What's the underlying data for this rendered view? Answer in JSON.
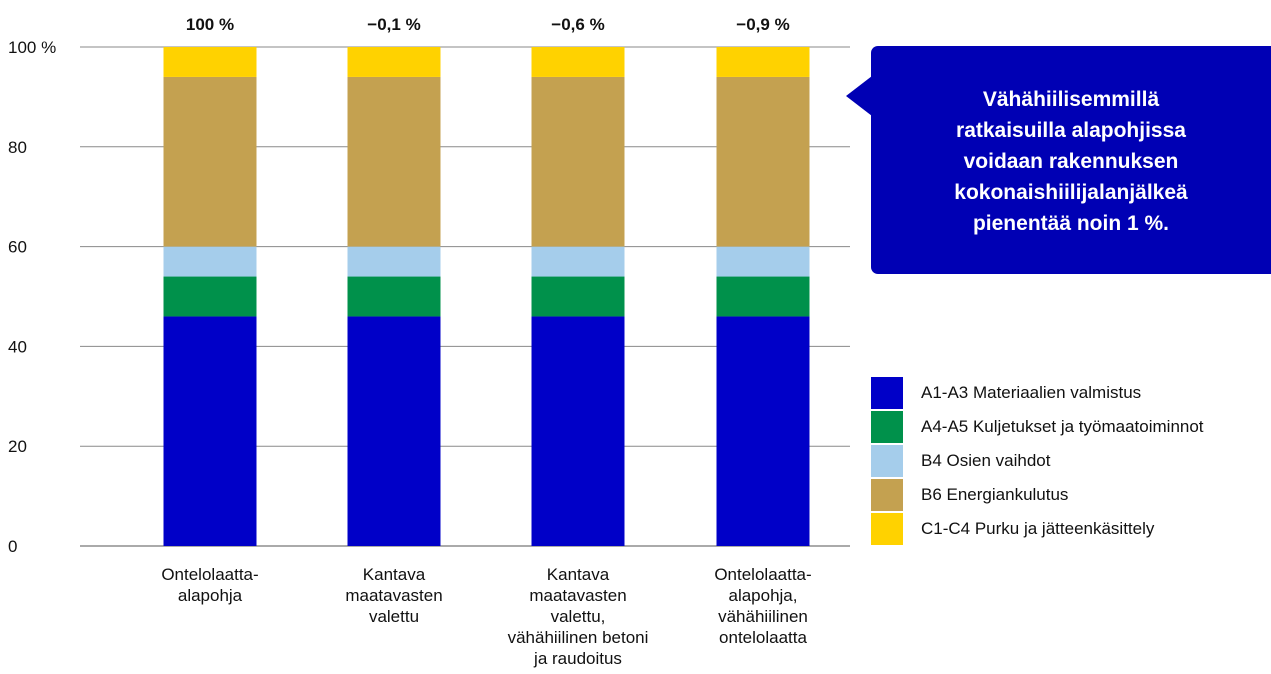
{
  "chart_data": {
    "type": "bar",
    "stacked": true,
    "categories": [
      [
        "Ontelolaatta-",
        "alapohja"
      ],
      [
        "Kantava",
        "maatavasten",
        "valettu"
      ],
      [
        "Kantava",
        "maatavasten",
        "valettu,",
        "vähähiilinen betoni",
        "ja raudoitus"
      ],
      [
        "Ontelolaatta-",
        "alapohja,",
        "vähähiilinen",
        "ontelolaatta"
      ]
    ],
    "top_labels": [
      "100 %",
      "−0,1 %",
      "−0,6 %",
      "−0,9 %"
    ],
    "series": [
      {
        "name": "A1-A3 Materiaalien valmistus",
        "color": "#0000c8",
        "values": [
          46,
          46,
          46,
          46
        ]
      },
      {
        "name": "A4-A5 Kuljetukset ja työmaatoiminnot",
        "color": "#00914b",
        "values": [
          8,
          8,
          8,
          8
        ]
      },
      {
        "name": "B4 Osien vaihdot",
        "color": "#a5cdeb",
        "values": [
          6,
          6,
          6,
          6
        ]
      },
      {
        "name": "B6 Energiankulutus",
        "color": "#c4a150",
        "values": [
          34,
          34,
          34,
          34
        ]
      },
      {
        "name": "C1-C4 Purku ja jätteenkäsittely",
        "color": "#ffd200",
        "values": [
          6,
          6,
          6,
          6
        ]
      }
    ],
    "ylim": [
      0,
      100
    ],
    "yticks": [
      0,
      20,
      40,
      60,
      80,
      100
    ],
    "ytick_labels": [
      "0",
      "20",
      "40",
      "60",
      "80",
      "100 %"
    ],
    "grid": true,
    "legend_position": "right"
  },
  "callout": {
    "text": "Vähähiilisemmillä\nratkaisuilla alapohjissa\nvoidaan rakennuksen\nkokonaishiilijalanjälkeä\npienentää noin 1 %.",
    "color": "#0000b4"
  }
}
